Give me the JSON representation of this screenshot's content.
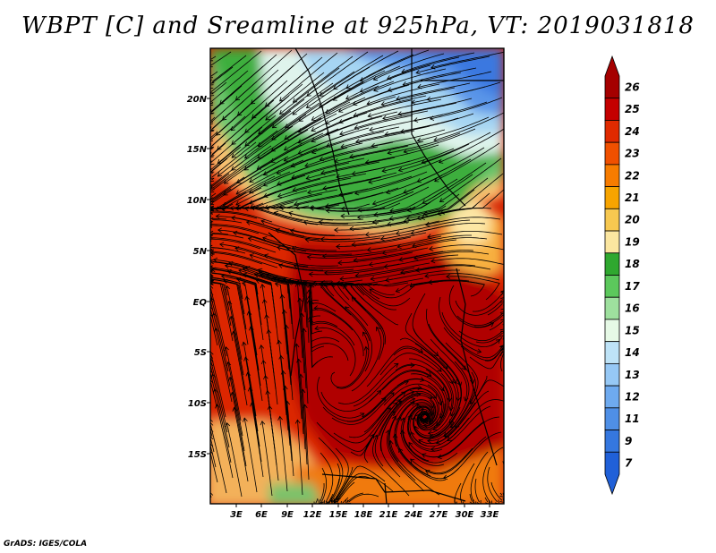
{
  "title": "WBPT [C] and Sreamline at 925hPa, VT: 2019031818",
  "map": {
    "lat_labels": [
      "20N",
      "15N",
      "10N",
      "5N",
      "EQ",
      "5S",
      "10S",
      "15S"
    ],
    "lon_labels": [
      "3E",
      "6E",
      "9E",
      "12E",
      "15E",
      "18E",
      "21E",
      "24E",
      "27E",
      "30E",
      "33E"
    ]
  },
  "colorbar": {
    "levels": [
      "26",
      "25",
      "24",
      "23",
      "22",
      "21",
      "20",
      "19",
      "18",
      "17",
      "16",
      "15",
      "14",
      "13",
      "12",
      "11",
      "9",
      "7"
    ],
    "colors": [
      "#a50000",
      "#c40000",
      "#e02a00",
      "#f05000",
      "#f77c00",
      "#f7a400",
      "#f7c850",
      "#fbe6a0",
      "#2fa82f",
      "#5cc85c",
      "#9ee09e",
      "#e6f9e6",
      "#bee3f7",
      "#96c8f5",
      "#6eaaef",
      "#4f8fe6",
      "#3577df",
      "#2060d8"
    ]
  },
  "credit": "GrADS: IGES/COLA"
}
